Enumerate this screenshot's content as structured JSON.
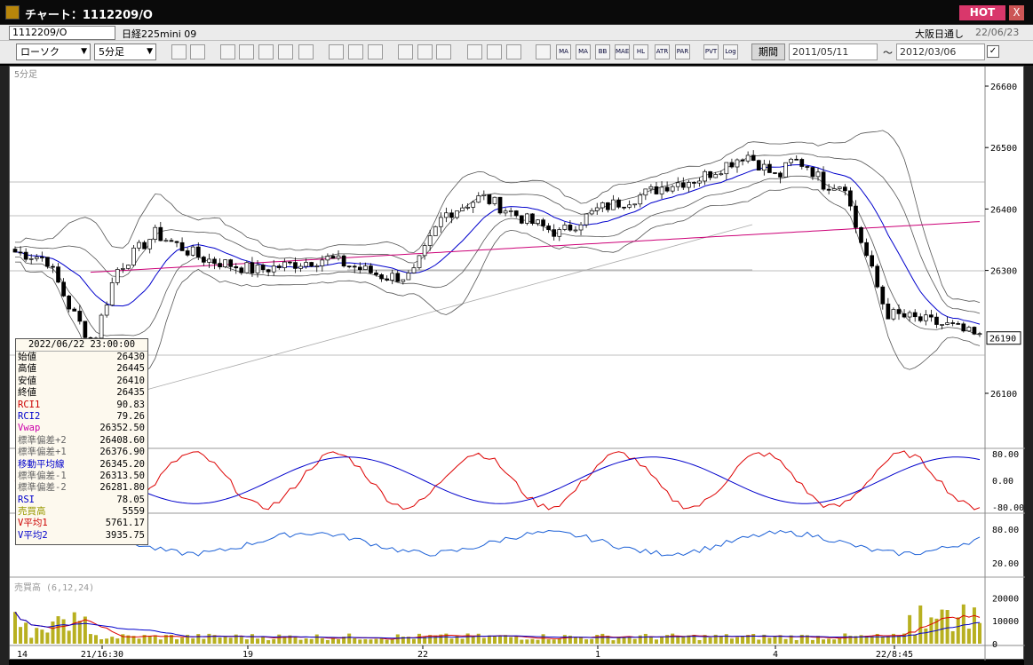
{
  "window": {
    "title": "チャート：1112209/O",
    "hot_label": "HOT",
    "close_label": "X"
  },
  "header": {
    "code": "1112209/O",
    "instrument": "日経225mini 09",
    "exchange": "大阪日通し",
    "date": "22/06/23"
  },
  "toolbar": {
    "chart_type": "ローソク",
    "interval": "5分足",
    "buttons": [
      "zoom",
      "split",
      "lock",
      "target",
      "table",
      "compare",
      "info",
      "line",
      "cursor",
      "arrow",
      "candle",
      "bar",
      "mark",
      "all",
      "gear",
      "pen",
      "color",
      "MA",
      "MA",
      "BB",
      "MAE",
      "HL",
      "ATR",
      "PAR",
      "PVT",
      "Log",
      "save"
    ],
    "period_label": "期間",
    "date_from": "2011/05/11",
    "date_to": "2012/03/06",
    "tilde": "〜"
  },
  "price_pane": {
    "label": "5分足",
    "y_ticks": [
      "26600",
      "26500",
      "26400",
      "26300",
      "26100"
    ],
    "current_price": "26190"
  },
  "rci_pane": {
    "y_ticks": [
      "80.00",
      "0.00",
      "-80.00"
    ]
  },
  "rsi_pane": {
    "y_ticks": [
      "80.00",
      "20.00"
    ]
  },
  "volume_pane": {
    "label": "売買高 (6,12,24)",
    "y_ticks": [
      "20000",
      "10000",
      "0"
    ]
  },
  "x_axis": [
    "14",
    "21/16:30",
    "19",
    "22",
    "1",
    "4",
    "22/8:45"
  ],
  "data_window": {
    "timestamp": "2022/06/22 23:00:00",
    "rows": [
      {
        "label": "始値",
        "value": "26430",
        "color": "#000000"
      },
      {
        "label": "高値",
        "value": "26445",
        "color": "#000000"
      },
      {
        "label": "安値",
        "value": "26410",
        "color": "#000000"
      },
      {
        "label": "終値",
        "value": "26435",
        "color": "#000000"
      },
      {
        "label": "RCI1",
        "value": "90.83",
        "color": "#cc0000"
      },
      {
        "label": "RCI2",
        "value": "79.26",
        "color": "#0000cc"
      },
      {
        "label": "Vwap",
        "value": "26352.50",
        "color": "#cc00aa"
      },
      {
        "label": "標準偏差+2",
        "value": "26408.60",
        "color": "#666666"
      },
      {
        "label": "標準偏差+1",
        "value": "26376.90",
        "color": "#666666"
      },
      {
        "label": "移動平均線",
        "value": "26345.20",
        "color": "#0000cc"
      },
      {
        "label": "標準偏差-1",
        "value": "26313.50",
        "color": "#666666"
      },
      {
        "label": "標準偏差-2",
        "value": "26281.80",
        "color": "#666666"
      },
      {
        "label": "RSI",
        "value": "78.05",
        "color": "#0000cc"
      },
      {
        "label": "売買高",
        "value": "5559",
        "color": "#999900"
      },
      {
        "label": "V平均1",
        "value": "5761.17",
        "color": "#cc0000"
      },
      {
        "label": "V平均2",
        "value": "3935.75",
        "color": "#0000cc"
      }
    ]
  },
  "colors": {
    "candle_up": "#ffffff",
    "candle_down": "#000000",
    "ma": "#0000cc",
    "vwap": "#cc0077",
    "bands": "#555555",
    "rci1": "#dd0000",
    "rci2": "#0000cc",
    "rsi": "#1a5fd6",
    "volume": "#b8b020"
  }
}
